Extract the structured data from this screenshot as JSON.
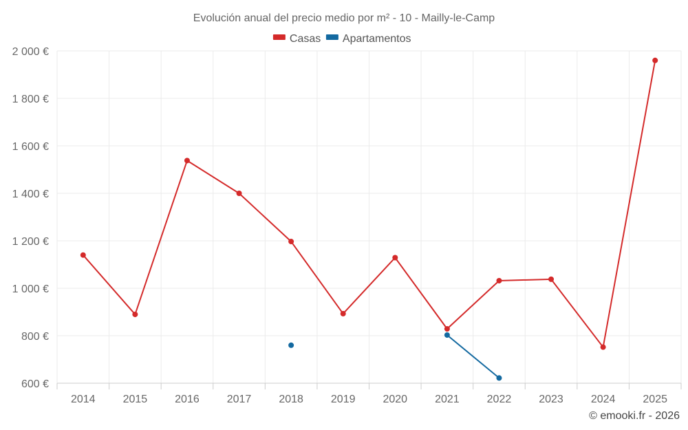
{
  "chart_data": {
    "type": "line",
    "title": "Evolución anual del precio medio por m² - 10 - Mailly-le-Camp",
    "xlabel": "",
    "ylabel": "",
    "categories": [
      "2014",
      "2015",
      "2016",
      "2017",
      "2018",
      "2019",
      "2020",
      "2021",
      "2022",
      "2023",
      "2024",
      "2025"
    ],
    "ylim": [
      600,
      2000
    ],
    "y_ticks": [
      600,
      800,
      1000,
      1200,
      1400,
      1600,
      1800,
      2000
    ],
    "y_tick_labels": [
      "600 €",
      "800 €",
      "1 000 €",
      "1 200 €",
      "1 400 €",
      "1 600 €",
      "1 800 €",
      "2 000 €"
    ],
    "grid": true,
    "legend_position": "top-center",
    "series": [
      {
        "name": "Casas",
        "color": "#d42a2a",
        "values": [
          1140,
          890,
          1538,
          1400,
          1197,
          893,
          1129,
          829,
          1032,
          1038,
          752,
          1960
        ]
      },
      {
        "name": "Apartamentos",
        "color": "#1369a0",
        "values": [
          null,
          null,
          null,
          null,
          760,
          null,
          null,
          803,
          622,
          null,
          null,
          null
        ]
      }
    ],
    "credit": "© emooki.fr - 2026"
  }
}
